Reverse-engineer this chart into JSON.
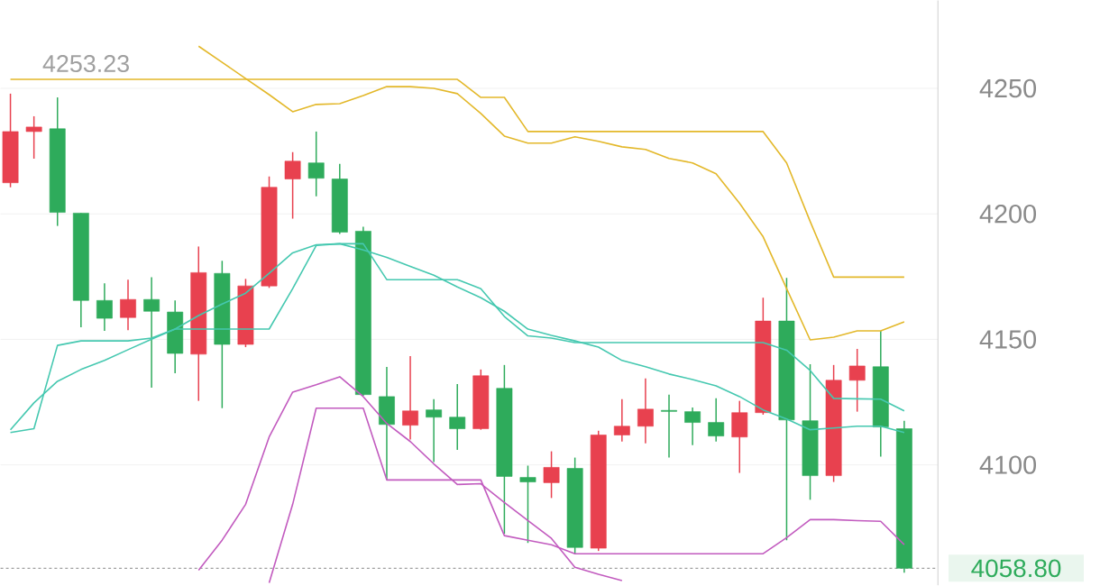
{
  "chart_data": {
    "type": "candlestick",
    "categories": [
      null,
      null,
      null,
      null,
      null,
      null,
      null,
      null,
      null,
      null,
      null,
      null,
      null,
      null,
      null,
      null,
      null,
      null,
      null,
      null,
      null,
      null,
      null,
      null,
      null,
      null,
      null,
      null,
      null,
      null,
      null,
      null,
      null,
      null,
      null,
      null,
      null,
      null,
      null
    ],
    "ohlc": [
      [
        4212.4,
        4247.9,
        4210.6,
        4232.8
      ],
      [
        4232.8,
        4238.9,
        4222.0,
        4234.6
      ],
      [
        4233.9,
        4246.4,
        4195.2,
        4200.6
      ],
      [
        4200.3,
        4200.3,
        4154.8,
        4165.5
      ],
      [
        4165.5,
        4172.3,
        4153.4,
        4158.4
      ],
      [
        4158.7,
        4173.8,
        4153.7,
        4165.9
      ],
      [
        4165.9,
        4174.8,
        4130.8,
        4161.2
      ],
      [
        4160.9,
        4165.5,
        4136.5,
        4144.4
      ],
      [
        4144.1,
        4187.0,
        4125.5,
        4176.6
      ],
      [
        4176.3,
        4181.3,
        4122.6,
        4148.0
      ],
      [
        4148.0,
        4174.1,
        4146.9,
        4171.3
      ],
      [
        4171.3,
        4214.9,
        4170.5,
        4210.6
      ],
      [
        4213.9,
        4224.6,
        4198.1,
        4221.0
      ],
      [
        4220.3,
        4232.8,
        4207.0,
        4214.2
      ],
      [
        4213.9,
        4219.9,
        4192.0,
        4192.7
      ],
      [
        4193.1,
        4194.9,
        4127.5,
        4128.0
      ],
      [
        4127.2,
        4139.0,
        4094.0,
        4116.1
      ],
      [
        4115.8,
        4143.3,
        4110.1,
        4121.5
      ],
      [
        4121.9,
        4126.2,
        4101.1,
        4119.0
      ],
      [
        4119.0,
        4132.2,
        4106.0,
        4114.4
      ],
      [
        4114.4,
        4138.0,
        4114.0,
        4135.5
      ],
      [
        4130.5,
        4139.8,
        4072.5,
        4095.4
      ],
      [
        4095.0,
        4099.7,
        4068.9,
        4093.2
      ],
      [
        4092.9,
        4105.4,
        4086.8,
        4099.0
      ],
      [
        4098.6,
        4102.9,
        4064.6,
        4067.1
      ],
      [
        4066.8,
        4113.6,
        4065.7,
        4111.9
      ],
      [
        4111.9,
        4126.2,
        4109.3,
        4115.4
      ],
      [
        4115.4,
        4134.4,
        4108.6,
        4122.2
      ],
      [
        4121.7,
        4128.0,
        4102.9,
        4121.3
      ],
      [
        4121.2,
        4122.9,
        4107.9,
        4116.9
      ],
      [
        4116.9,
        4126.5,
        4109.3,
        4111.5
      ],
      [
        4111.1,
        4125.5,
        4096.8,
        4120.8
      ],
      [
        4120.8,
        4166.6,
        4120.0,
        4157.3
      ],
      [
        4157.3,
        4174.5,
        4070.0,
        4117.9
      ],
      [
        4117.6,
        4140.1,
        4086.1,
        4095.7
      ],
      [
        4095.7,
        4139.8,
        4093.2,
        4133.7
      ],
      [
        4133.7,
        4146.2,
        4121.2,
        4139.4
      ],
      [
        4139.1,
        4153.4,
        4103.3,
        4115.1
      ],
      [
        4114.4,
        4117.6,
        4057.0,
        4058.8
      ]
    ],
    "colors": [
      "#e8414f",
      "#e8414f",
      "#2eab5b",
      "#2eab5b",
      "#2eab5b",
      "#e8414f",
      "#2eab5b",
      "#2eab5b",
      "#e8414f",
      "#2eab5b",
      "#e8414f",
      "#e8414f",
      "#e8414f",
      "#2eab5b",
      "#2eab5b",
      "#2eab5b",
      "#2eab5b",
      "#e8414f",
      "#2eab5b",
      "#2eab5b",
      "#e8414f",
      "#2eab5b",
      "#2eab5b",
      "#e8414f",
      "#2eab5b",
      "#e8414f",
      "#e8414f",
      "#e8414f",
      "#2eab5b",
      "#2eab5b",
      "#2eab5b",
      "#e8414f",
      "#e8414f",
      "#2eab5b",
      "#2eab5b",
      "#e8414f",
      "#e8414f",
      "#2eab5b",
      "#2eab5b"
    ],
    "series": [
      {
        "type": "line",
        "color": "#e3b82a",
        "values": [
          4253.6,
          4253.6,
          4253.6,
          4253.6,
          4253.6,
          4253.6,
          4253.6,
          4253.6,
          4253.6,
          4253.6,
          4253.6,
          4253.6,
          4253.6,
          4253.6,
          4253.6,
          4253.6,
          4253.6,
          4253.6,
          4253.6,
          4253.6,
          4246.4,
          4246.4,
          4232.8,
          4232.8,
          4232.8,
          4232.8,
          4232.8,
          4232.8,
          4232.8,
          4232.8,
          4232.8,
          4232.8,
          4232.8,
          4220.3,
          4197.0,
          4174.8,
          4174.8,
          4174.8,
          4174.8
        ]
      },
      {
        "type": "line",
        "color": "#e3b82a",
        "values": [
          null,
          null,
          null,
          null,
          null,
          null,
          null,
          null,
          4266.8,
          4260.4,
          4253.9,
          4247.5,
          4240.7,
          4243.6,
          4243.9,
          4247.1,
          4250.7,
          4250.7,
          4250.0,
          4247.9,
          4240.0,
          4231.0,
          4228.2,
          4228.2,
          4230.7,
          4228.9,
          4226.7,
          4225.7,
          4222.1,
          4220.3,
          4216.0,
          4204.2,
          4190.9,
          4170.2,
          4149.8,
          4150.9,
          4153.4,
          4153.4,
          4157.0
        ]
      },
      {
        "type": "line",
        "color": "#45c8b0",
        "values": [
          4112.9,
          4114.4,
          4147.6,
          4149.4,
          4149.4,
          4149.4,
          4150.5,
          4154.1,
          4154.1,
          4154.1,
          4154.1,
          4154.1,
          4170.2,
          4187.4,
          4188.1,
          4188.1,
          4173.8,
          4173.8,
          4173.8,
          4173.8,
          4170.2,
          4159.1,
          4151.4,
          4150.5,
          4148.7,
          4148.7,
          4148.7,
          4148.7,
          4148.7,
          4148.7,
          4148.7,
          4148.7,
          4148.7,
          4145.7,
          4137.6,
          4126.5,
          4126.3,
          4126.2,
          4121.5
        ]
      },
      {
        "type": "line",
        "color": "#45c8b0",
        "values": [
          4114.0,
          4124.7,
          4133.3,
          4138.0,
          4141.6,
          4145.9,
          4150.1,
          4154.1,
          4159.5,
          4164.1,
          4168.4,
          4176.3,
          4184.5,
          4187.7,
          4188.1,
          4185.6,
          4182.7,
          4179.1,
          4175.6,
          4170.9,
          4166.6,
          4161.2,
          4154.1,
          4151.6,
          4149.4,
          4146.9,
          4141.6,
          4139.1,
          4136.2,
          4134.0,
          4131.5,
          4127.2,
          4121.9,
          4118.3,
          4114.0,
          4114.7,
          4115.4,
          4115.4,
          4112.9
        ]
      },
      {
        "type": "line",
        "color": "#c25bbf",
        "values": [
          null,
          null,
          null,
          null,
          null,
          null,
          null,
          null,
          null,
          null,
          null,
          4053.0,
          4084.3,
          4122.6,
          4122.6,
          4122.6,
          4094.0,
          4094.0,
          4094.0,
          4094.0,
          4094.0,
          4071.8,
          4070.0,
          4068.2,
          4064.6,
          4064.6,
          4064.6,
          4064.6,
          4064.6,
          4064.6,
          4064.6,
          4064.6,
          4064.6,
          4071.0,
          4078.2,
          4078.2,
          4077.8,
          4077.5,
          4068.2
        ]
      },
      {
        "type": "line",
        "color": "#c25bbf",
        "values": [
          null,
          null,
          null,
          null,
          null,
          null,
          null,
          null,
          4058.0,
          4070.0,
          4084.3,
          4111.1,
          4129.0,
          4131.9,
          4135.1,
          4127.2,
          4116.5,
          4109.3,
          4100.4,
          4092.2,
          4092.5,
          4085.0,
          4077.8,
          4070.7,
          4059.2,
          4056.4,
          4053.9,
          null,
          null,
          null,
          null,
          null,
          null,
          null,
          null,
          null,
          null,
          null,
          null
        ]
      }
    ],
    "ylim": [
      4052,
      4285
    ],
    "yticks": [
      4100,
      4150,
      4200,
      4250
    ],
    "grid": "y",
    "tick_labels": "y",
    "annotations": [
      "4253.23"
    ],
    "ref_lines": [
      {
        "axis": "y",
        "value": 4058.8,
        "label": "4058.80",
        "line_style": "dashed"
      }
    ]
  }
}
